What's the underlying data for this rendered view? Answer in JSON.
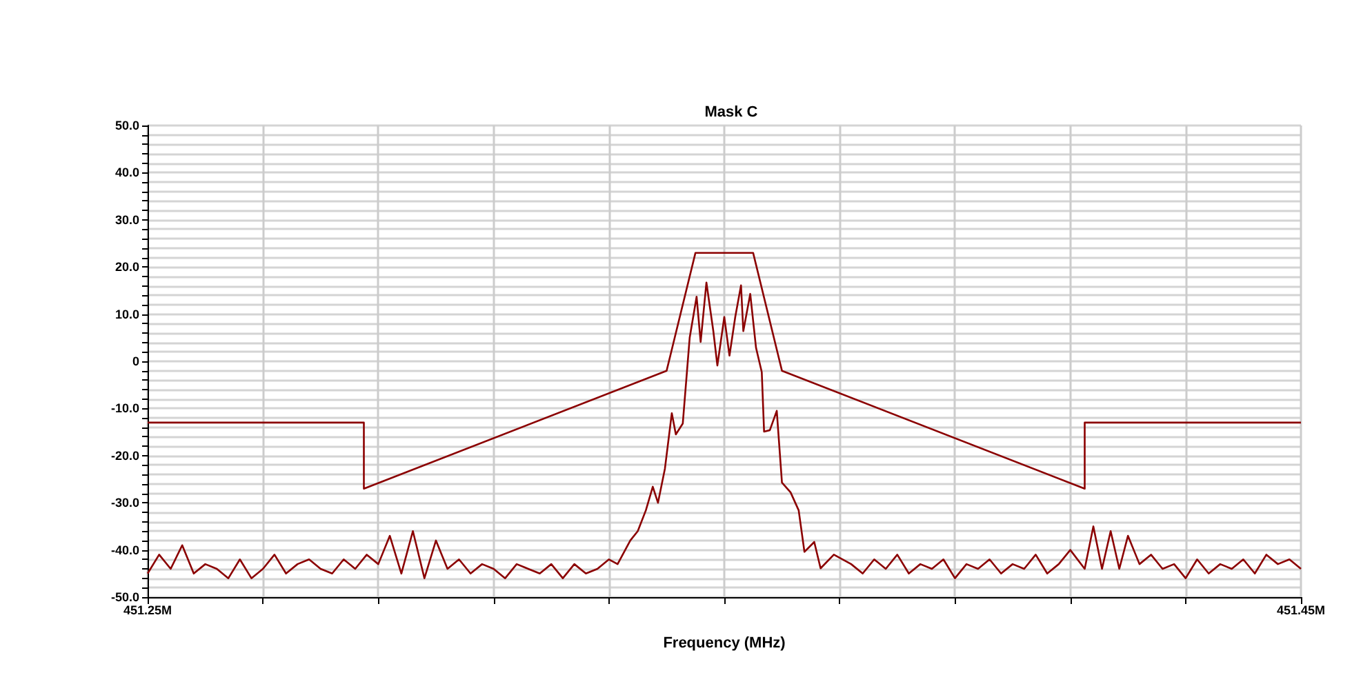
{
  "chart_data": {
    "type": "line",
    "title": "Mask C",
    "xlabel": "Frequency (MHz)",
    "grid": true,
    "line_style": "solid",
    "xlim": [
      451.25,
      451.45
    ],
    "xticks": [
      {
        "value": 451.25,
        "label": "451.25M"
      },
      {
        "value": 451.27,
        "label": null
      },
      {
        "value": 451.29,
        "label": null
      },
      {
        "value": 451.31,
        "label": null
      },
      {
        "value": 451.33,
        "label": null
      },
      {
        "value": 451.35,
        "label": null
      },
      {
        "value": 451.37,
        "label": null
      },
      {
        "value": 451.39,
        "label": null
      },
      {
        "value": 451.41,
        "label": null
      },
      {
        "value": 451.43,
        "label": null
      },
      {
        "value": 451.45,
        "label": "451.45M"
      }
    ],
    "ylim": [
      -50,
      50
    ],
    "yticks": [
      {
        "value": -50,
        "label": "-50.0"
      },
      {
        "value": -48,
        "label": null
      },
      {
        "value": -46,
        "label": null
      },
      {
        "value": -44,
        "label": null
      },
      {
        "value": -42,
        "label": null
      },
      {
        "value": -40,
        "label": "-40.0"
      },
      {
        "value": -38,
        "label": null
      },
      {
        "value": -36,
        "label": null
      },
      {
        "value": -34,
        "label": null
      },
      {
        "value": -32,
        "label": null
      },
      {
        "value": -30,
        "label": "-30.0"
      },
      {
        "value": -28,
        "label": null
      },
      {
        "value": -26,
        "label": null
      },
      {
        "value": -24,
        "label": null
      },
      {
        "value": -22,
        "label": null
      },
      {
        "value": -20,
        "label": "-20.0"
      },
      {
        "value": -18,
        "label": null
      },
      {
        "value": -16,
        "label": null
      },
      {
        "value": -14,
        "label": null
      },
      {
        "value": -12,
        "label": null
      },
      {
        "value": -10,
        "label": "-10.0"
      },
      {
        "value": -8,
        "label": null
      },
      {
        "value": -6,
        "label": null
      },
      {
        "value": -4,
        "label": null
      },
      {
        "value": -2,
        "label": null
      },
      0,
      {
        "value": 2,
        "label": null
      },
      {
        "value": 4,
        "label": null
      },
      {
        "value": 6,
        "label": null
      },
      {
        "value": 8,
        "label": null
      },
      {
        "value": 10,
        "label": "10.0"
      },
      {
        "value": 12,
        "label": null
      },
      {
        "value": 14,
        "label": null
      },
      {
        "value": 16,
        "label": null
      },
      {
        "value": 18,
        "label": null
      },
      {
        "value": 20,
        "label": "20.0"
      },
      {
        "value": 22,
        "label": null
      },
      {
        "value": 24,
        "label": null
      },
      {
        "value": 26,
        "label": null
      },
      {
        "value": 28,
        "label": null
      },
      {
        "value": 30,
        "label": "30.0"
      },
      {
        "value": 32,
        "label": null
      },
      {
        "value": 34,
        "label": null
      },
      {
        "value": 36,
        "label": null
      },
      {
        "value": 38,
        "label": null
      },
      {
        "value": 40,
        "label": "40.0"
      },
      {
        "value": 42,
        "label": null
      },
      {
        "value": 44,
        "label": null
      },
      {
        "value": 46,
        "label": null
      },
      {
        "value": 48,
        "label": null
      },
      {
        "value": 50,
        "label": "50.0"
      }
    ],
    "series": [
      {
        "color": "#8b0000",
        "x": [
          451.25,
          451.2875,
          451.2875,
          451.34,
          451.345,
          451.355,
          451.36,
          451.4125,
          451.4125,
          451.45
        ],
        "values": [
          -13,
          -13,
          -27,
          -2,
          23,
          23,
          -2,
          -27,
          -13,
          -13
        ]
      },
      {
        "color": "#8b0000",
        "x": [
          451.25,
          451.252,
          451.254,
          451.256,
          451.258,
          451.26,
          451.262,
          451.264,
          451.266,
          451.268,
          451.27,
          451.272,
          451.274,
          451.276,
          451.278,
          451.28,
          451.282,
          451.284,
          451.286,
          451.288,
          451.29,
          451.292,
          451.294,
          451.296,
          451.298,
          451.3,
          451.302,
          451.304,
          451.306,
          451.308,
          451.31,
          451.312,
          451.314,
          451.316,
          451.318,
          451.32,
          451.322,
          451.324,
          451.326,
          451.328,
          451.33,
          451.3315,
          451.3337,
          451.335,
          451.3364,
          451.3376,
          451.3385,
          451.3397,
          451.3409,
          451.3416,
          451.3428,
          451.344,
          451.3452,
          451.3459,
          451.3469,
          451.3481,
          451.3488,
          451.35,
          451.3509,
          451.3519,
          451.3529,
          451.3533,
          451.3545,
          451.3555,
          451.3565,
          451.3569,
          451.3579,
          451.3591,
          451.36,
          451.3615,
          451.3629,
          451.3639,
          451.3656,
          451.3667,
          451.369,
          451.372,
          451.374,
          451.376,
          451.378,
          451.38,
          451.382,
          451.384,
          451.386,
          451.388,
          451.39,
          451.392,
          451.394,
          451.396,
          451.398,
          451.4,
          451.402,
          451.404,
          451.406,
          451.408,
          451.41,
          451.4125,
          451.414,
          451.4155,
          451.417,
          451.4185,
          451.42,
          451.422,
          451.424,
          451.426,
          451.428,
          451.43,
          451.432,
          451.434,
          451.436,
          451.438,
          451.44,
          451.442,
          451.444,
          451.446,
          451.448,
          451.45
        ],
        "values": [
          -45,
          -41,
          -44,
          -39,
          -45,
          -43,
          -44,
          -46,
          -42,
          -46,
          -44,
          -41,
          -45,
          -43,
          -42,
          -44,
          -45,
          -42,
          -44,
          -41,
          -43,
          -37,
          -45,
          -36,
          -46,
          -38,
          -44,
          -42,
          -45,
          -43,
          -44,
          -46,
          -43,
          -44,
          -45,
          -43,
          -46,
          -43,
          -45,
          -44,
          -42,
          -43,
          -38,
          -36,
          -31.6,
          -26.6,
          -30,
          -22.8,
          -11,
          -15.5,
          -13.2,
          5,
          13.7,
          4.1,
          16.7,
          6.4,
          -0.9,
          9.4,
          1.2,
          9.4,
          16.1,
          6.4,
          14.3,
          2.9,
          -2.3,
          -14.9,
          -14.6,
          -10.5,
          -25.7,
          -27.8,
          -31.6,
          -40.4,
          -38.3,
          -43.9,
          -41,
          -43,
          -45,
          -42,
          -44,
          -41,
          -45,
          -43,
          -44,
          -42,
          -46,
          -43,
          -44,
          -42,
          -45,
          -43,
          -44,
          -41,
          -45,
          -43,
          -40,
          -44,
          -35,
          -44,
          -36,
          -44,
          -37,
          -43,
          -41,
          -44,
          -43,
          -46,
          -42,
          -45,
          -43,
          -44,
          -42,
          -45,
          -41,
          -43,
          -42,
          -44
        ]
      }
    ]
  }
}
